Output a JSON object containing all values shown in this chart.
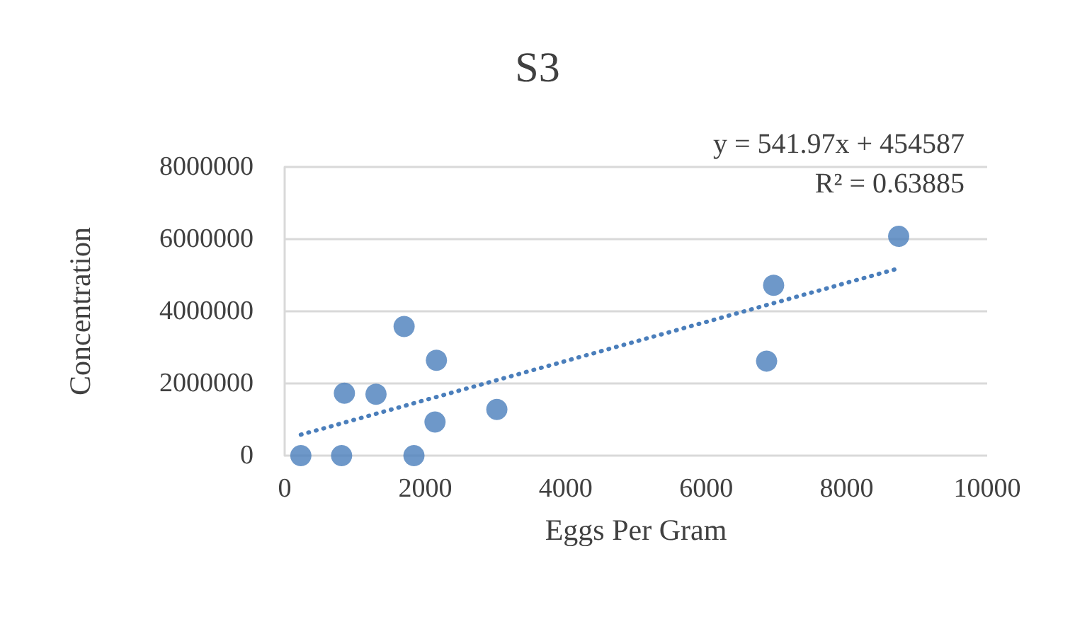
{
  "chart_data": {
    "type": "scatter",
    "title": "S3",
    "xlabel": "Eggs Per Gram",
    "ylabel": "Concentration",
    "series": [
      {
        "color": "#4a7ebb",
        "x": [
          230,
          810,
          850,
          1300,
          1700,
          1840,
          2160,
          2140,
          3020,
          6860,
          6960,
          8740
        ],
        "values": [
          0,
          0,
          1730000,
          1700000,
          3580000,
          0,
          2640000,
          930000,
          1280000,
          2620000,
          4720000,
          6080000
        ],
        "marker": "circle"
      },
      {
        "type": "line",
        "color": "#4a7ebb",
        "x": [
          230,
          8740
        ],
        "values": [
          580000,
          5190000
        ],
        "line_style": "dotted",
        "marker": "none"
      }
    ],
    "annotations": [
      "y = 541.97x + 454587",
      "R² = 0.63885"
    ],
    "xlim": [
      0,
      10000
    ],
    "xticks": [
      0,
      2000,
      4000,
      6000,
      8000,
      10000
    ],
    "ylim": [
      0,
      8000000
    ],
    "yticks": [
      0,
      2000000,
      4000000,
      6000000,
      8000000
    ],
    "grid": "y"
  }
}
